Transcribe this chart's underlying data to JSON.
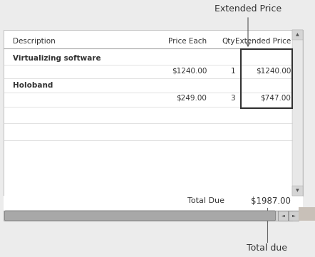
{
  "bg_color": "#ececec",
  "form_bg": "#ffffff",
  "title_annotation": "Extended Price",
  "bottom_annotation": "Total due",
  "col_headers": [
    "Description",
    "Price Each",
    "Qty",
    "Extended Price"
  ],
  "rows": [
    {
      "desc": "Virtualizing software",
      "price": "",
      "qty": "",
      "ext": "",
      "is_desc": true
    },
    {
      "desc": "",
      "price": "$1240.00",
      "qty": "1",
      "ext": "$1240.00",
      "is_desc": false
    },
    {
      "desc": "Holoband",
      "price": "",
      "qty": "",
      "ext": "",
      "is_desc": true
    },
    {
      "desc": "",
      "price": "$249.00",
      "qty": "3",
      "ext": "$747.00",
      "is_desc": false
    },
    {
      "desc": "",
      "price": "",
      "qty": "",
      "ext": "",
      "is_desc": false
    },
    {
      "desc": "",
      "price": "",
      "qty": "",
      "ext": "",
      "is_desc": false
    }
  ],
  "total_label": "Total Due",
  "total_value": "$1987.00",
  "line_color": "#cccccc",
  "header_line_color": "#aaaaaa",
  "text_color": "#333333",
  "light_text": "#666666",
  "annotation_color": "#333333",
  "highlight_box_color": "#333333",
  "scrollbar_bg": "#d8d8d8",
  "scrollbar_thumb": "#888888",
  "font_size_header": 7.5,
  "font_size_row": 7.5,
  "font_size_total": 8,
  "font_size_annotation": 9
}
